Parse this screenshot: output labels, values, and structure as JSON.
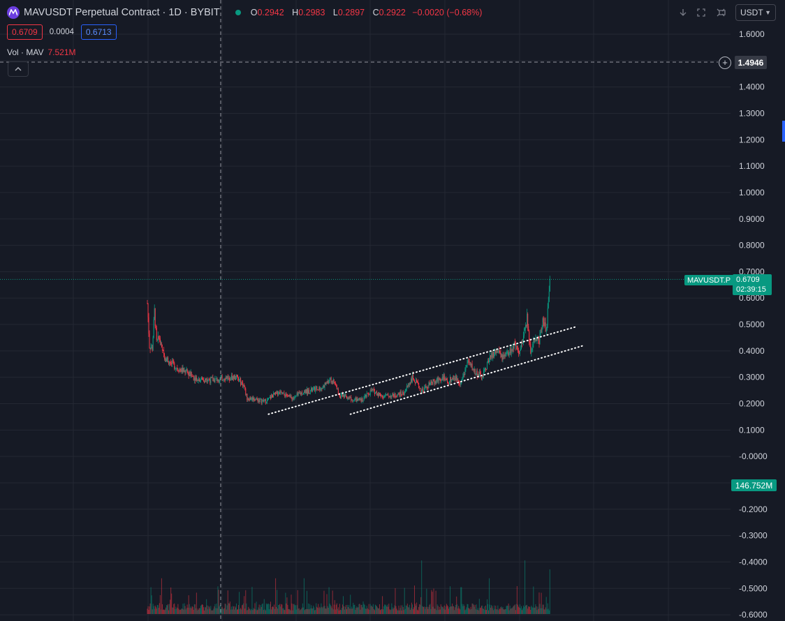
{
  "header": {
    "title": "MAVUSDT Perpetual Contract · 1D · BYBIT",
    "ohlc": [
      {
        "key": "O",
        "value": "0.2942"
      },
      {
        "key": "H",
        "value": "0.2983"
      },
      {
        "key": "L",
        "value": "0.2897"
      },
      {
        "key": "C",
        "value": "0.2922"
      }
    ],
    "change": "−0.0020 (−0.68%)"
  },
  "prices": {
    "sell": "0.6709",
    "spread": "0.0004",
    "buy": "0.6713"
  },
  "volume_legend": {
    "label": "Vol · MAV",
    "value": "7.521M"
  },
  "toolbar": {
    "currency": "USDT"
  },
  "crosshair": {
    "price_label": "1.4946"
  },
  "last_price": {
    "symbol": "MAVUSDT.P",
    "price": "0.6709",
    "countdown": "02:39:15"
  },
  "volume_tag": "146.752M",
  "colors": {
    "up": "#089981",
    "down": "#f23645",
    "background": "#161a25",
    "grid": "#242833",
    "text": "#d1d4dc"
  },
  "icons": [
    "mav-logo-icon",
    "live-dot-icon",
    "down-arrow-icon",
    "maximize-icon",
    "fullscreen-icon",
    "refresh-icon",
    "chevron-down-icon",
    "chevron-up-icon",
    "plus-circle-icon"
  ],
  "chart_data": {
    "type": "candlestick",
    "y_ticks": [
      "1.6000",
      "1.5000",
      "1.4000",
      "1.3000",
      "1.2000",
      "1.1000",
      "1.0000",
      "0.9000",
      "0.8000",
      "0.7000",
      "0.6000",
      "0.5000",
      "0.4000",
      "0.3000",
      "0.2000",
      "0.1000",
      "-0.0000",
      "-0.1000",
      "-0.2000",
      "-0.3000",
      "-0.4000",
      "-0.5000",
      "-0.6000"
    ],
    "ylim": [
      -0.6,
      1.6
    ],
    "grid": true,
    "price_path": [
      [
        0,
        0.58
      ],
      [
        3,
        0.42
      ],
      [
        7,
        0.41
      ],
      [
        10,
        0.55
      ],
      [
        13,
        0.43
      ],
      [
        17,
        0.45
      ],
      [
        20,
        0.4
      ],
      [
        27,
        0.37
      ],
      [
        35,
        0.35
      ],
      [
        45,
        0.33
      ],
      [
        55,
        0.32
      ],
      [
        65,
        0.3
      ],
      [
        80,
        0.29
      ],
      [
        95,
        0.29
      ],
      [
        110,
        0.3
      ],
      [
        125,
        0.3
      ],
      [
        135,
        0.27
      ],
      [
        140,
        0.22
      ],
      [
        150,
        0.22
      ],
      [
        160,
        0.21
      ],
      [
        168,
        0.21
      ],
      [
        175,
        0.23
      ],
      [
        185,
        0.24
      ],
      [
        195,
        0.23
      ],
      [
        205,
        0.22
      ],
      [
        215,
        0.24
      ],
      [
        230,
        0.25
      ],
      [
        245,
        0.26
      ],
      [
        255,
        0.29
      ],
      [
        262,
        0.28
      ],
      [
        270,
        0.23
      ],
      [
        285,
        0.22
      ],
      [
        300,
        0.21
      ],
      [
        315,
        0.25
      ],
      [
        330,
        0.23
      ],
      [
        345,
        0.23
      ],
      [
        360,
        0.24
      ],
      [
        372,
        0.3
      ],
      [
        385,
        0.25
      ],
      [
        400,
        0.28
      ],
      [
        415,
        0.3
      ],
      [
        420,
        0.28
      ],
      [
        430,
        0.3
      ],
      [
        440,
        0.28
      ],
      [
        450,
        0.36
      ],
      [
        460,
        0.32
      ],
      [
        470,
        0.3
      ],
      [
        480,
        0.37
      ],
      [
        490,
        0.4
      ],
      [
        500,
        0.37
      ],
      [
        510,
        0.4
      ],
      [
        515,
        0.42
      ],
      [
        522,
        0.38
      ],
      [
        528,
        0.46
      ],
      [
        533,
        0.52
      ],
      [
        538,
        0.4
      ],
      [
        542,
        0.45
      ],
      [
        550,
        0.44
      ],
      [
        555,
        0.52
      ],
      [
        560,
        0.48
      ],
      [
        565,
        0.67
      ]
    ],
    "trendlines": [
      {
        "start": [
          170,
          0.16
        ],
        "end": [
          600,
          0.49
        ]
      },
      {
        "start": [
          285,
          0.16
        ],
        "end": [
          612,
          0.42
        ]
      }
    ],
    "last_price": 0.6709,
    "volume": {
      "scale_max": 146.752,
      "unit": "M",
      "spikes": [
        [
          5,
          30
        ],
        [
          20,
          40
        ],
        [
          32,
          16
        ],
        [
          52,
          12
        ],
        [
          105,
          8
        ],
        [
          135,
          12
        ],
        [
          180,
          40
        ],
        [
          220,
          40
        ],
        [
          255,
          30
        ],
        [
          275,
          20
        ],
        [
          330,
          20
        ],
        [
          385,
          60
        ],
        [
          440,
          30
        ],
        [
          480,
          40
        ],
        [
          530,
          60
        ],
        [
          565,
          50
        ]
      ]
    }
  }
}
